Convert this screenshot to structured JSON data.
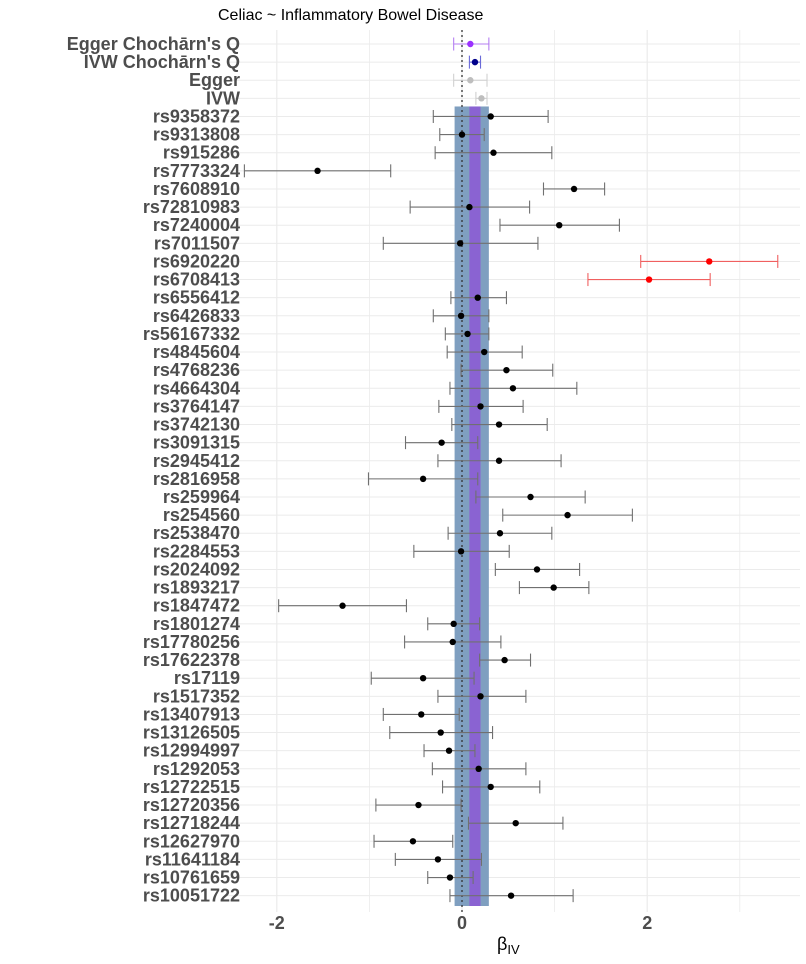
{
  "chart_data": {
    "type": "forest",
    "title": "Celiac ~ Inflammatory Bowel Disease",
    "xlabel_main": "β",
    "xlabel_sub": "IV",
    "xlim": [
      -2.5,
      3.6
    ],
    "xticks": [
      -2,
      0,
      2
    ],
    "xtick_labels": [
      "-2",
      "0",
      "2"
    ],
    "grid": true,
    "reference_line": 0,
    "bands": {
      "outer": {
        "lo": -0.08,
        "hi": 0.29,
        "color": "#7f9fc0"
      },
      "inner": {
        "lo": 0.08,
        "hi": 0.2,
        "color": "#8a63d2"
      }
    },
    "colors": {
      "violet": "#9b30ff",
      "violet_err": "#b57ff2",
      "navy": "#00008b",
      "navy_err": "#6a6ad8",
      "grey": "#bebebe",
      "grey_err": "#d0d0d0",
      "black": "#000000",
      "black_err": "#707070",
      "red": "#ff0000",
      "red_err": "#f06060",
      "grid": "#ebebeb",
      "refline": "#333333"
    },
    "rows": [
      {
        "label": "Egger Chochārn's Q",
        "est": 0.09,
        "lo": -0.09,
        "hi": 0.29,
        "color": "violet"
      },
      {
        "label": "IVW Chochārn's Q",
        "est": 0.14,
        "lo": 0.08,
        "hi": 0.2,
        "color": "navy"
      },
      {
        "label": "Egger",
        "est": 0.09,
        "lo": -0.09,
        "hi": 0.27,
        "color": "grey"
      },
      {
        "label": "IVW",
        "est": 0.21,
        "lo": 0.15,
        "hi": 0.27,
        "color": "grey"
      },
      {
        "label": "rs9358372",
        "est": 0.31,
        "lo": -0.31,
        "hi": 0.93,
        "color": "black"
      },
      {
        "label": "rs9313808",
        "est": 0.0,
        "lo": -0.24,
        "hi": 0.24,
        "color": "black"
      },
      {
        "label": "rs915286",
        "est": 0.34,
        "lo": -0.29,
        "hi": 0.97,
        "color": "black"
      },
      {
        "label": "rs7773324",
        "est": -1.56,
        "lo": -2.35,
        "hi": -0.77,
        "color": "black"
      },
      {
        "label": "rs7608910",
        "est": 1.21,
        "lo": 0.88,
        "hi": 1.54,
        "color": "black"
      },
      {
        "label": "rs72810983",
        "est": 0.08,
        "lo": -0.56,
        "hi": 0.73,
        "color": "black"
      },
      {
        "label": "rs7240004",
        "est": 1.05,
        "lo": 0.41,
        "hi": 1.7,
        "color": "black"
      },
      {
        "label": "rs7011507",
        "est": -0.02,
        "lo": -0.85,
        "hi": 0.82,
        "color": "black"
      },
      {
        "label": "rs6920220",
        "est": 2.67,
        "lo": 1.93,
        "hi": 3.41,
        "color": "red"
      },
      {
        "label": "rs6708413",
        "est": 2.02,
        "lo": 1.36,
        "hi": 2.68,
        "color": "red"
      },
      {
        "label": "rs6556412",
        "est": 0.17,
        "lo": -0.12,
        "hi": 0.48,
        "color": "black"
      },
      {
        "label": "rs6426833",
        "est": -0.01,
        "lo": -0.31,
        "hi": 0.29,
        "color": "black"
      },
      {
        "label": "rs56167332",
        "est": 0.06,
        "lo": -0.18,
        "hi": 0.29,
        "color": "black"
      },
      {
        "label": "rs4845604",
        "est": 0.24,
        "lo": -0.16,
        "hi": 0.65,
        "color": "black"
      },
      {
        "label": "rs4768236",
        "est": 0.48,
        "lo": -0.01,
        "hi": 0.98,
        "color": "black"
      },
      {
        "label": "rs4664304",
        "est": 0.55,
        "lo": -0.13,
        "hi": 1.24,
        "color": "black"
      },
      {
        "label": "rs3764147",
        "est": 0.2,
        "lo": -0.25,
        "hi": 0.66,
        "color": "black"
      },
      {
        "label": "rs3742130",
        "est": 0.4,
        "lo": -0.11,
        "hi": 0.92,
        "color": "black"
      },
      {
        "label": "rs3091315",
        "est": -0.22,
        "lo": -0.61,
        "hi": 0.17,
        "color": "black"
      },
      {
        "label": "rs2945412",
        "est": 0.4,
        "lo": -0.26,
        "hi": 1.07,
        "color": "black"
      },
      {
        "label": "rs2816958",
        "est": -0.42,
        "lo": -1.01,
        "hi": 0.17,
        "color": "black"
      },
      {
        "label": "rs259964",
        "est": 0.74,
        "lo": 0.15,
        "hi": 1.33,
        "color": "black"
      },
      {
        "label": "rs254560",
        "est": 1.14,
        "lo": 0.44,
        "hi": 1.84,
        "color": "black"
      },
      {
        "label": "rs2538470",
        "est": 0.41,
        "lo": -0.15,
        "hi": 0.97,
        "color": "black"
      },
      {
        "label": "rs2284553",
        "est": -0.01,
        "lo": -0.52,
        "hi": 0.51,
        "color": "black"
      },
      {
        "label": "rs2024092",
        "est": 0.81,
        "lo": 0.36,
        "hi": 1.27,
        "color": "black"
      },
      {
        "label": "rs1893217",
        "est": 0.99,
        "lo": 0.62,
        "hi": 1.37,
        "color": "black"
      },
      {
        "label": "rs1847472",
        "est": -1.29,
        "lo": -1.98,
        "hi": -0.6,
        "color": "black"
      },
      {
        "label": "rs1801274",
        "est": -0.09,
        "lo": -0.37,
        "hi": 0.19,
        "color": "black"
      },
      {
        "label": "rs17780256",
        "est": -0.1,
        "lo": -0.62,
        "hi": 0.42,
        "color": "black"
      },
      {
        "label": "rs17622378",
        "est": 0.46,
        "lo": 0.19,
        "hi": 0.74,
        "color": "black"
      },
      {
        "label": "rs17119",
        "est": -0.42,
        "lo": -0.98,
        "hi": 0.13,
        "color": "black"
      },
      {
        "label": "rs1517352",
        "est": 0.2,
        "lo": -0.26,
        "hi": 0.69,
        "color": "black"
      },
      {
        "label": "rs13407913",
        "est": -0.44,
        "lo": -0.85,
        "hi": -0.03,
        "color": "black"
      },
      {
        "label": "rs13126505",
        "est": -0.23,
        "lo": -0.78,
        "hi": 0.33,
        "color": "black"
      },
      {
        "label": "rs12994997",
        "est": -0.14,
        "lo": -0.41,
        "hi": 0.14,
        "color": "black"
      },
      {
        "label": "rs1292053",
        "est": 0.18,
        "lo": -0.32,
        "hi": 0.69,
        "color": "black"
      },
      {
        "label": "rs12722515",
        "est": 0.31,
        "lo": -0.21,
        "hi": 0.84,
        "color": "black"
      },
      {
        "label": "rs12720356",
        "est": -0.47,
        "lo": -0.93,
        "hi": -0.01,
        "color": "black"
      },
      {
        "label": "rs12718244",
        "est": 0.58,
        "lo": 0.07,
        "hi": 1.09,
        "color": "black"
      },
      {
        "label": "rs12627970",
        "est": -0.53,
        "lo": -0.95,
        "hi": -0.1,
        "color": "black"
      },
      {
        "label": "rs11641184",
        "est": -0.26,
        "lo": -0.72,
        "hi": 0.21,
        "color": "black"
      },
      {
        "label": "rs10761659",
        "est": -0.13,
        "lo": -0.37,
        "hi": 0.12,
        "color": "black"
      },
      {
        "label": "rs10051722",
        "est": 0.53,
        "lo": -0.13,
        "hi": 1.2,
        "color": "black"
      }
    ]
  }
}
